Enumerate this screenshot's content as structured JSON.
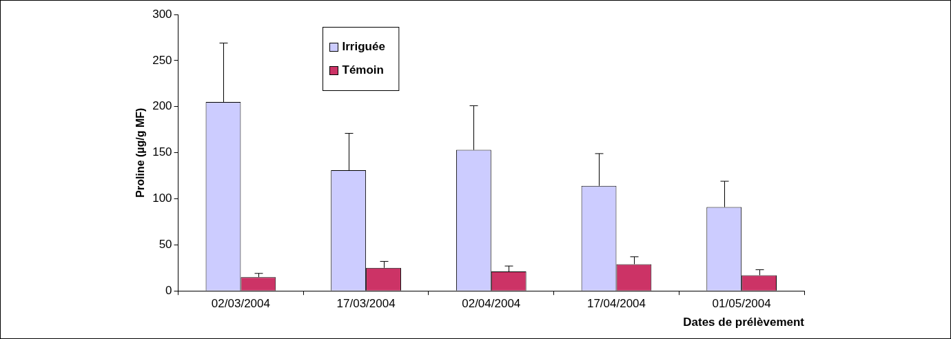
{
  "chart_data": {
    "type": "bar",
    "x_label": "Dates de prélèvement",
    "y_label": "Proline (µg/g MF)",
    "categories": [
      "02/03/2004",
      "17/03/2004",
      "02/04/2004",
      "17/04/2004",
      "01/05/2004"
    ],
    "series": [
      {
        "name": "Irriguée",
        "color": "#ccccff",
        "values": [
          205,
          131,
          153,
          114,
          91
        ],
        "errors": [
          64,
          40,
          48,
          35,
          28
        ]
      },
      {
        "name": "Témoin",
        "color": "#cc3366",
        "values": [
          15,
          25,
          21,
          29,
          17
        ],
        "errors": [
          4,
          7,
          6,
          8,
          6
        ]
      }
    ],
    "ylim": [
      0,
      300
    ],
    "yticks": [
      0,
      50,
      100,
      150,
      200,
      250,
      300
    ],
    "grid": false,
    "legend": "upper center"
  }
}
